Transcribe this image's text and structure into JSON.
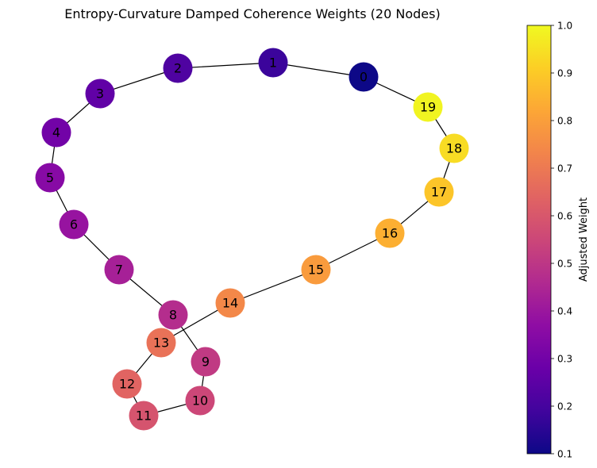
{
  "title": "Entropy-Curvature Damped Coherence Weights (20 Nodes)",
  "colorbar": {
    "label": "Adjusted Weight",
    "colormap": "plasma",
    "min": 0.1,
    "max": 1.0,
    "ticks": [
      "0.1",
      "0.2",
      "0.3",
      "0.4",
      "0.5",
      "0.6",
      "0.7",
      "0.8",
      "0.9",
      "1.0"
    ]
  },
  "nodes": [
    {
      "id": "0",
      "weight": 0.1
    },
    {
      "id": "1",
      "weight": 0.18
    },
    {
      "id": "2",
      "weight": 0.22
    },
    {
      "id": "3",
      "weight": 0.26
    },
    {
      "id": "4",
      "weight": 0.3
    },
    {
      "id": "5",
      "weight": 0.35
    },
    {
      "id": "6",
      "weight": 0.39
    },
    {
      "id": "7",
      "weight": 0.43
    },
    {
      "id": "8",
      "weight": 0.47
    },
    {
      "id": "9",
      "weight": 0.51
    },
    {
      "id": "10",
      "weight": 0.55
    },
    {
      "id": "11",
      "weight": 0.59
    },
    {
      "id": "12",
      "weight": 0.64
    },
    {
      "id": "13",
      "weight": 0.68
    },
    {
      "id": "14",
      "weight": 0.74
    },
    {
      "id": "15",
      "weight": 0.79
    },
    {
      "id": "16",
      "weight": 0.84
    },
    {
      "id": "17",
      "weight": 0.89
    },
    {
      "id": "18",
      "weight": 0.94
    },
    {
      "id": "19",
      "weight": 0.99
    }
  ],
  "edges": [
    [
      "0",
      "1"
    ],
    [
      "1",
      "2"
    ],
    [
      "2",
      "3"
    ],
    [
      "3",
      "4"
    ],
    [
      "4",
      "5"
    ],
    [
      "5",
      "6"
    ],
    [
      "6",
      "7"
    ],
    [
      "7",
      "8"
    ],
    [
      "8",
      "9"
    ],
    [
      "9",
      "10"
    ],
    [
      "10",
      "11"
    ],
    [
      "11",
      "12"
    ],
    [
      "12",
      "13"
    ],
    [
      "13",
      "14"
    ],
    [
      "14",
      "15"
    ],
    [
      "15",
      "16"
    ],
    [
      "16",
      "17"
    ],
    [
      "17",
      "18"
    ],
    [
      "18",
      "19"
    ],
    [
      "19",
      "0"
    ]
  ]
}
